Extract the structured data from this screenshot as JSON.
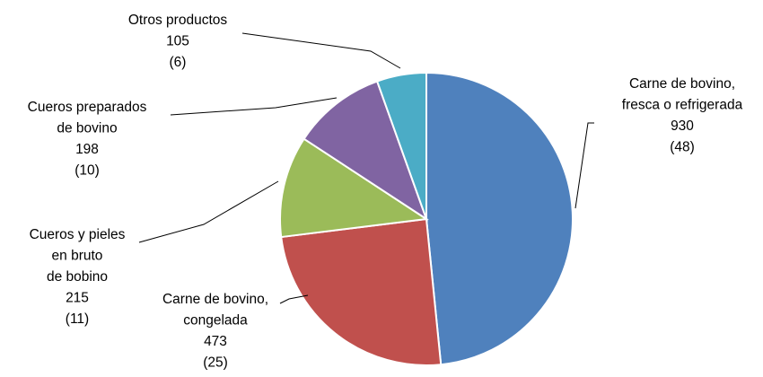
{
  "chart_data": {
    "type": "pie",
    "title": "",
    "slices": [
      {
        "name_lines": [
          "Carne de bovino,",
          "fresca o refrigerada"
        ],
        "value": 930,
        "percent": 48,
        "value_label": "930",
        "percent_label": "(48)",
        "color": "#4F81BD"
      },
      {
        "name_lines": [
          "Carne de bovino,",
          "congelada"
        ],
        "value": 473,
        "percent": 25,
        "value_label": "473",
        "percent_label": "(25)",
        "color": "#C0504D"
      },
      {
        "name_lines": [
          "Cueros y pieles",
          "en bruto",
          "de bobino"
        ],
        "value": 215,
        "percent": 11,
        "value_label": "215",
        "percent_label": "(11)",
        "color": "#9BBB59"
      },
      {
        "name_lines": [
          "Cueros preparados",
          "de bovino"
        ],
        "value": 198,
        "percent": 10,
        "value_label": "198",
        "percent_label": "(10)",
        "color": "#8064A2"
      },
      {
        "name_lines": [
          "Otros productos"
        ],
        "value": 105,
        "percent": 6,
        "value_label": "105",
        "percent_label": "(6)",
        "color": "#4BACC6"
      }
    ]
  }
}
